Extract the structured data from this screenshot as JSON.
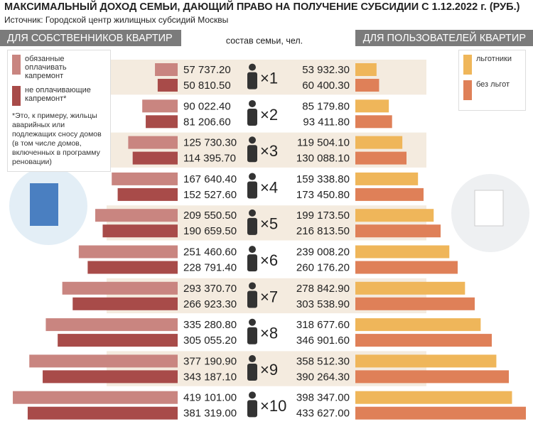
{
  "chart_data": {
    "type": "butterfly",
    "title": "МАКСИМАЛЬНЫЙ ДОХОД СЕМЬИ, ДАЮЩИЙ ПРАВО НА ПОЛУЧЕНИЕ СУБСИДИИ С 1.12.2022 г. (РУБ.)",
    "subtitle": "Источник: Городской центр жилищных субсидий Москвы",
    "left_title": "ДЛЯ СОБСТВЕННИКОВ КВАРТИР",
    "right_title": "ДЛЯ ПОЛЬЗОВАТЕЛЕЙ КВАРТИР",
    "center_label": "состав семьи, чел.",
    "note": "*Это, к примеру, жильцы аварийных или подлежащих сносу домов (в том числе домов, включенных в программу реновации)",
    "categories": [
      "×1",
      "×2",
      "×3",
      "×4",
      "×5",
      "×6",
      "×7",
      "×8",
      "×9",
      "×10"
    ],
    "series": [
      {
        "name": "обязанные оплачивать капремонт",
        "side": "left",
        "color": "#c98580",
        "values": [
          57737.2,
          90022.4,
          125730.3,
          167640.4,
          209550.5,
          251460.6,
          293370.7,
          335280.8,
          377190.9,
          419101.0
        ],
        "value_labels": [
          "57 737.20",
          "90 022.40",
          "125 730.30",
          "167 640.40",
          "209 550.50",
          "251 460.60",
          "293 370.70",
          "335 280.80",
          "377 190.90",
          "419 101.00"
        ]
      },
      {
        "name": "не оплачивающие капремонт*",
        "side": "left",
        "color": "#a84b49",
        "values": [
          50810.5,
          81206.6,
          114395.7,
          152527.6,
          190659.5,
          228791.4,
          266923.3,
          305055.2,
          343187.1,
          381319.0
        ],
        "value_labels": [
          "50 810.50",
          "81 206.60",
          "114 395.70",
          "152 527.60",
          "190 659.50",
          "228 791.40",
          "266 923.30",
          "305 055.20",
          "343 187.10",
          "381 319.00"
        ]
      },
      {
        "name": "льготники",
        "side": "right",
        "color": "#efb65a",
        "values": [
          53932.3,
          85179.8,
          119504.1,
          159338.8,
          199173.5,
          239008.2,
          278842.9,
          318677.6,
          358512.3,
          398347.0
        ],
        "value_labels": [
          "53 932.30",
          "85 179.80",
          "119 504.10",
          "159 338.80",
          "199 173.50",
          "239 008.20",
          "278 842.90",
          "318 677.60",
          "358 512.30",
          "398 347.00"
        ]
      },
      {
        "name": "без льгот",
        "side": "right",
        "color": "#df8058",
        "values": [
          60400.3,
          93411.8,
          130088.1,
          173450.8,
          216813.5,
          260176.2,
          303538.9,
          346901.6,
          390264.3,
          433627.0
        ],
        "value_labels": [
          "60 400.30",
          "93 411.80",
          "130 088.10",
          "173 450.80",
          "216 813.50",
          "260 176.20",
          "303 538.90",
          "346 901.60",
          "390 264.30",
          "433 627.00"
        ]
      }
    ]
  }
}
